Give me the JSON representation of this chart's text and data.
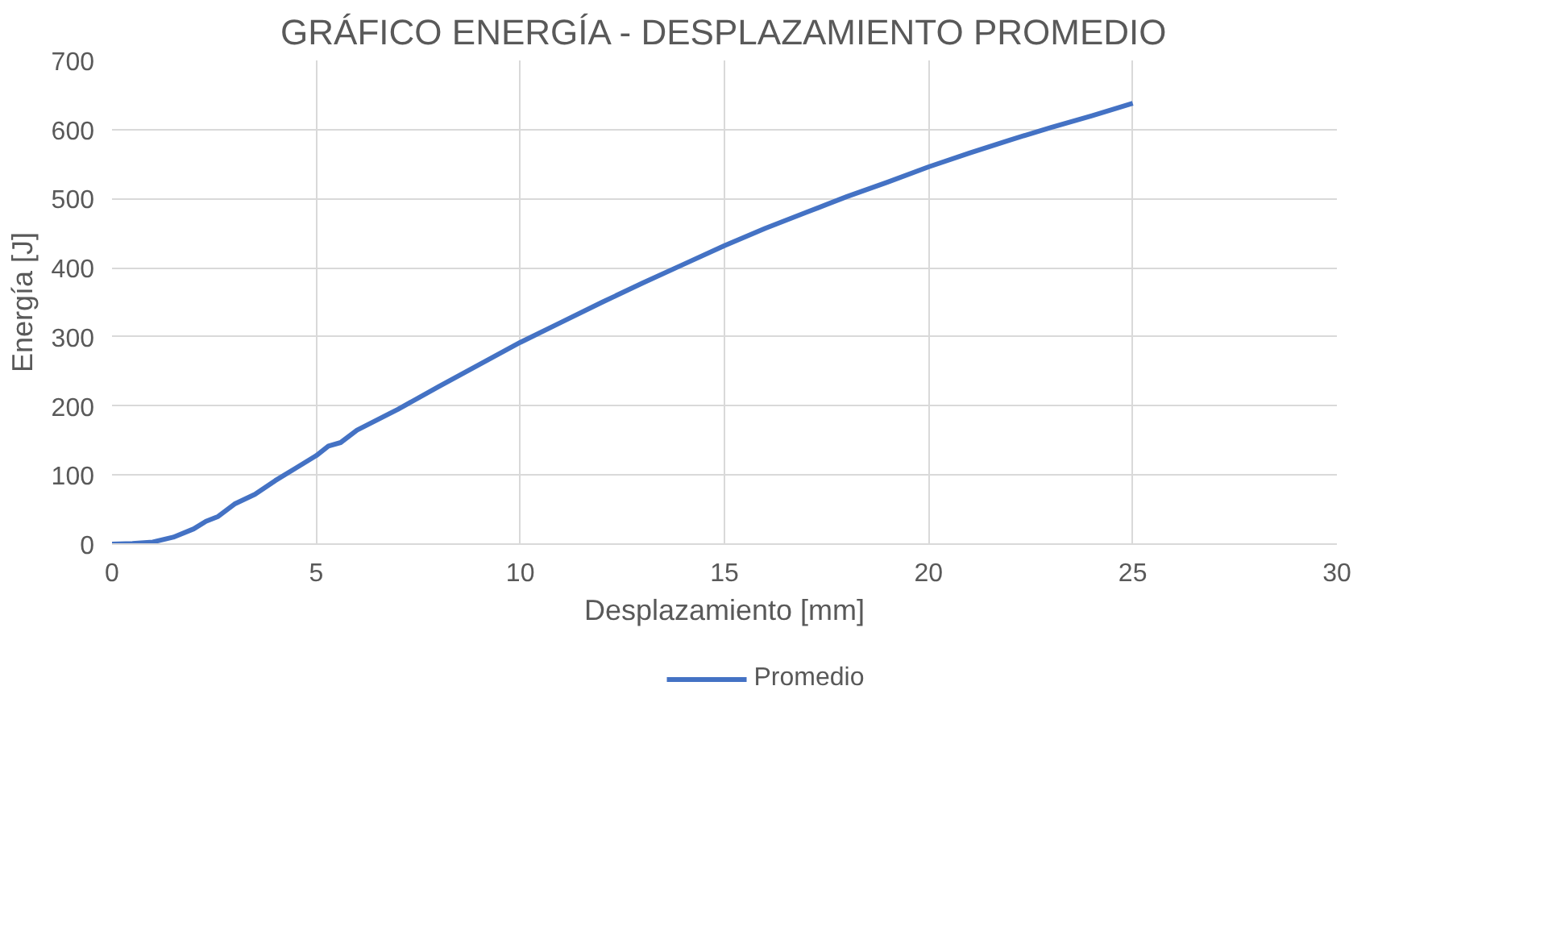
{
  "chart_data": {
    "type": "line",
    "title": "GRÁFICO ENERGÍA - DESPLAZAMIENTO PROMEDIO",
    "xlabel": "Desplazamiento [mm]",
    "ylabel": "Energía [J]",
    "x": [
      0,
      0.5,
      1,
      1.5,
      2,
      2.3,
      2.6,
      3,
      3.5,
      4,
      4.5,
      5,
      5.3,
      5.6,
      6,
      7,
      8,
      9,
      10,
      11,
      12,
      13,
      14,
      15,
      16,
      17,
      18,
      19,
      20,
      21,
      22,
      23,
      24,
      25
    ],
    "series": [
      {
        "name": "Promedio",
        "color": "#4472c4",
        "values": [
          0,
          1,
          3,
          10,
          22,
          33,
          40,
          58,
          72,
          92,
          110,
          128,
          142,
          147,
          165,
          195,
          228,
          260,
          292,
          321,
          350,
          378,
          405,
          432,
          457,
          480,
          503,
          524,
          546,
          566,
          585,
          603,
          620,
          638
        ]
      }
    ],
    "xlim": [
      0,
      30
    ],
    "xticks": [
      0,
      5,
      10,
      15,
      20,
      25,
      30
    ],
    "ylim": [
      0,
      700
    ],
    "yticks": [
      0,
      100,
      200,
      300,
      400,
      500,
      600,
      700
    ],
    "grid": true,
    "legend": "bottom",
    "marker": "none",
    "line_style": "solid"
  }
}
